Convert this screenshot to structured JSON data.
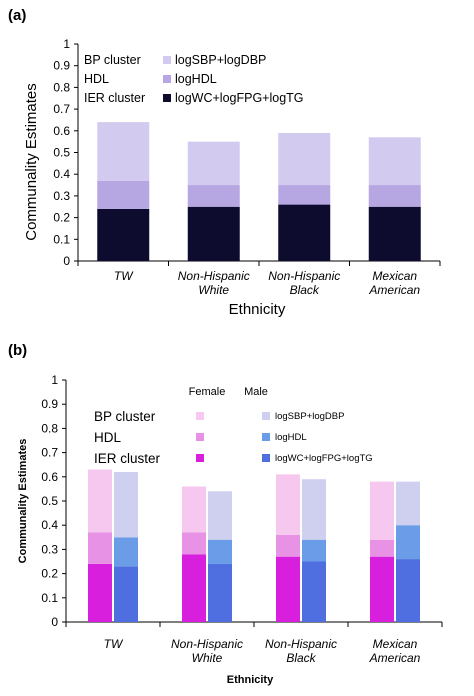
{
  "chart_data": [
    {
      "panel_label": "(a)",
      "type": "bar",
      "stacked": true,
      "ylabel": "Communality Estimates",
      "xlabel": "Ethnicity",
      "ylim": [
        0,
        1
      ],
      "yticks": [
        "0",
        "0.1",
        "0.2",
        "0.3",
        "0.4",
        "0.5",
        "0.6",
        "0.7",
        "0.8",
        "0.9",
        "1"
      ],
      "categories": [
        [
          "TW"
        ],
        [
          "Non-Hispanic",
          "White"
        ],
        [
          "Non-Hispanic",
          "Black"
        ],
        [
          "Mexican",
          "American"
        ]
      ],
      "series": [
        {
          "cluster": "IER cluster",
          "name": "logWC+logFPG+logTG",
          "color": "#0d0b2e",
          "values": [
            0.24,
            0.25,
            0.26,
            0.25
          ]
        },
        {
          "cluster": "HDL",
          "name": "logHDL",
          "color": "#b6a6e2",
          "values": [
            0.13,
            0.1,
            0.09,
            0.1
          ]
        },
        {
          "cluster": "BP cluster",
          "name": "logSBP+logDBP",
          "color": "#d2cbef",
          "values": [
            0.27,
            0.2,
            0.24,
            0.22
          ]
        }
      ],
      "legend_placement": "top-left"
    },
    {
      "panel_label": "(b)",
      "type": "bar",
      "stacked": true,
      "grouped_by": [
        "Female",
        "Male"
      ],
      "ylabel": "Communality Estimates",
      "xlabel": "Ethnicity",
      "ylim": [
        0,
        1
      ],
      "yticks": [
        "0",
        "0.1",
        "0.2",
        "0.3",
        "0.4",
        "0.5",
        "0.6",
        "0.7",
        "0.8",
        "0.9",
        "1"
      ],
      "categories": [
        [
          "TW"
        ],
        [
          "Non-Hispanic",
          "White"
        ],
        [
          "Non-Hispanic",
          "Black"
        ],
        [
          "Mexican",
          "American"
        ]
      ],
      "groups": [
        {
          "name": "Female",
          "series": [
            {
              "cluster": "IER cluster",
              "color": "#d91fde",
              "values": [
                0.24,
                0.28,
                0.27,
                0.27
              ]
            },
            {
              "cluster": "HDL",
              "color": "#e792e5",
              "values": [
                0.13,
                0.09,
                0.09,
                0.07
              ]
            },
            {
              "cluster": "BP cluster",
              "color": "#f6c7ef",
              "values": [
                0.26,
                0.19,
                0.25,
                0.24
              ]
            }
          ]
        },
        {
          "name": "Male",
          "series": [
            {
              "name": "logWC+logFPG+logTG",
              "color": "#4f6fe0",
              "values": [
                0.23,
                0.24,
                0.25,
                0.26
              ]
            },
            {
              "name": "logHDL",
              "color": "#6b9ce8",
              "values": [
                0.12,
                0.1,
                0.09,
                0.14
              ]
            },
            {
              "name": "logSBP+logDBP",
              "color": "#cfd0f0",
              "values": [
                0.27,
                0.2,
                0.25,
                0.18
              ]
            }
          ]
        }
      ],
      "legend_placement": "top"
    }
  ]
}
